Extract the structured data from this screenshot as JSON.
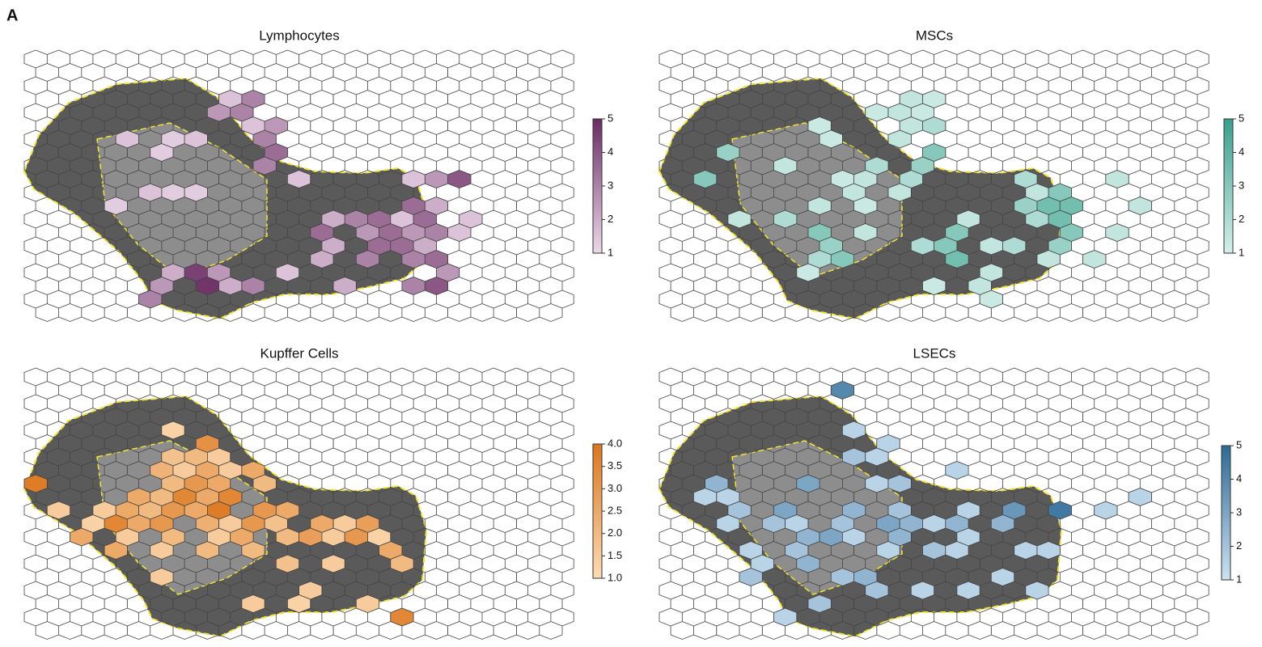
{
  "panel_label": "A",
  "chart_data": [
    {
      "type": "hexmap",
      "title": "Lymphocytes",
      "low_color": "#ecd9ea",
      "high_color": "#6a2c62",
      "clim": [
        1,
        5
      ],
      "cticks": [
        1,
        2,
        3,
        4,
        5
      ],
      "x": [
        8,
        9,
        8,
        9,
        10,
        9,
        6,
        7,
        10,
        10,
        4,
        10,
        11,
        5,
        6,
        5,
        7,
        3,
        16,
        17,
        13,
        14,
        15,
        16,
        17,
        14,
        15,
        16,
        17,
        18,
        13,
        15,
        16,
        17,
        12,
        14,
        16,
        17,
        6,
        7,
        8,
        5,
        7,
        8,
        9,
        5,
        13,
        16,
        17,
        18,
        11,
        12,
        19,
        18,
        17,
        16
      ],
      "y": [
        3,
        3,
        4,
        4,
        5,
        5,
        6,
        6,
        6,
        7,
        6,
        8,
        9,
        7,
        10,
        10,
        10,
        11,
        11,
        11,
        12,
        12,
        12,
        12,
        12,
        13,
        13,
        13,
        13,
        13,
        14,
        14,
        14,
        14,
        15,
        15,
        15,
        15,
        16,
        16,
        16,
        17,
        17,
        17,
        17,
        18,
        17,
        17,
        17,
        16,
        16,
        13,
        12,
        9,
        9,
        9
      ],
      "values": [
        1.5,
        3,
        2.5,
        3,
        2.5,
        1.5,
        1.3,
        1.5,
        3,
        3.5,
        1.5,
        3,
        1.5,
        1.3,
        1.3,
        1.5,
        1.3,
        1.3,
        3.5,
        2,
        2,
        3,
        3.5,
        1.5,
        3.5,
        2.5,
        3.5,
        2.5,
        3,
        1.5,
        2,
        3.5,
        3.5,
        2,
        2,
        3,
        3,
        3.5,
        2,
        4.5,
        2.5,
        2.5,
        4.8,
        2,
        3,
        3,
        2,
        3,
        4,
        2.5,
        1.5,
        3.5,
        1.5,
        4,
        2.5,
        1.5
      ]
    },
    {
      "type": "hexmap",
      "title": "MSCs",
      "low_color": "#d6efea",
      "high_color": "#36a08c",
      "clim": [
        1,
        5
      ],
      "cticks": [
        1,
        2,
        3,
        4,
        5
      ],
      "x": [
        10,
        11,
        9,
        10,
        11,
        6,
        10,
        11,
        7,
        10,
        2,
        11,
        1,
        5,
        9,
        10,
        11,
        7,
        8,
        15,
        19,
        16,
        17,
        8,
        10,
        6,
        8,
        15,
        16,
        17,
        20,
        3,
        5,
        13,
        16,
        17,
        6,
        8,
        12,
        17,
        19,
        7,
        11,
        12,
        14,
        15,
        17,
        6,
        7,
        12,
        16,
        18,
        6,
        13,
        14,
        11,
        14
      ],
      "y": [
        3,
        3,
        4,
        4,
        4,
        5,
        5,
        5,
        6,
        6,
        7,
        7,
        9,
        8,
        8,
        9,
        8,
        9,
        9,
        9,
        9,
        10,
        10,
        10,
        10,
        11,
        11,
        11,
        11,
        11,
        11,
        12,
        12,
        12,
        12,
        12,
        13,
        13,
        13,
        13,
        13,
        14,
        14,
        14,
        14,
        14,
        14,
        15,
        15,
        15,
        15,
        15,
        16,
        17,
        16,
        17,
        18
      ],
      "values": [
        1.5,
        1.3,
        1.3,
        1.5,
        1.3,
        1.3,
        1.5,
        2,
        1.3,
        1.5,
        2.5,
        3,
        3,
        1.5,
        2,
        2,
        2.5,
        1.3,
        1.5,
        2,
        1.5,
        1.5,
        3,
        1.5,
        1.5,
        1.5,
        1.3,
        2.5,
        3.5,
        3.5,
        1.5,
        1.5,
        2,
        1.5,
        2,
        3.5,
        3,
        1.5,
        3,
        3,
        1.5,
        2.5,
        2,
        3,
        1.5,
        2,
        2.5,
        2,
        3,
        3.5,
        1.5,
        1.5,
        1.3,
        1.5,
        1.5,
        1.3,
        1.3
      ]
    },
    {
      "type": "hexmap",
      "title": "Kupffer Cells",
      "low_color": "#fcdcb4",
      "high_color": "#dc761c",
      "clim": [
        1,
        4
      ],
      "cticks": [
        {
          "value": 1,
          "label": "1.0"
        },
        1.5,
        {
          "value": 2,
          "label": "2.0"
        },
        2.5,
        {
          "value": 3,
          "label": "3.0"
        },
        3.5,
        {
          "value": 4,
          "label": "4.0"
        }
      ],
      "x": [
        0,
        6,
        7,
        6,
        7,
        8,
        5,
        6,
        7,
        8,
        9,
        6,
        7,
        8,
        10,
        4,
        5,
        6,
        7,
        8,
        3,
        4,
        5,
        6,
        7,
        8,
        10,
        11,
        3,
        4,
        5,
        7,
        8,
        9,
        10,
        12,
        13,
        14,
        2,
        4,
        6,
        8,
        9,
        11,
        12,
        13,
        14,
        3,
        5,
        7,
        9,
        15,
        11,
        13,
        16,
        5,
        12,
        9,
        11,
        14,
        16,
        1,
        2,
        15
      ],
      "y": [
        8,
        4,
        5,
        6,
        6,
        6,
        7,
        7,
        7,
        7,
        7,
        8,
        8,
        8,
        8,
        9,
        9,
        9,
        9,
        9,
        10,
        10,
        10,
        10,
        10,
        10,
        10,
        10,
        11,
        11,
        11,
        11,
        11,
        11,
        11,
        11,
        11,
        11,
        12,
        12,
        12,
        12,
        12,
        12,
        12,
        12,
        12,
        13,
        13,
        13,
        13,
        13,
        14,
        14,
        14,
        15,
        16,
        17,
        17,
        17,
        18,
        10,
        11,
        12
      ],
      "values": [
        3.8,
        1.3,
        3.2,
        1.8,
        2,
        1.5,
        2.2,
        1.5,
        2.5,
        1.5,
        2.5,
        2,
        3,
        2.5,
        2,
        2.5,
        2,
        3.5,
        2.5,
        3.5,
        1.5,
        2.5,
        2,
        3,
        2.5,
        3.8,
        3,
        2.5,
        3.5,
        2.5,
        3,
        2.3,
        1.5,
        3,
        1.8,
        2.5,
        1.5,
        2.8,
        2.5,
        1.5,
        2,
        1.5,
        2.5,
        2,
        2.8,
        1.5,
        3,
        2.5,
        1.5,
        2,
        2,
        2.5,
        1.8,
        1.5,
        2,
        1.5,
        1.5,
        1.5,
        1.3,
        1.5,
        3.5,
        1.5,
        1.3,
        1.3
      ]
    },
    {
      "type": "hexmap",
      "title": "LSECs",
      "low_color": "#cde2f2",
      "high_color": "#2c6a96",
      "clim": [
        1,
        5
      ],
      "cticks": [
        1,
        2,
        3,
        4,
        5
      ],
      "x": [
        7,
        8,
        9,
        8,
        9,
        12,
        6,
        9,
        10,
        1,
        2,
        3,
        5,
        8,
        10,
        13,
        19,
        15,
        17,
        2,
        4,
        5,
        7,
        9,
        10,
        11,
        12,
        14,
        6,
        7,
        8,
        10,
        13,
        3,
        5,
        9,
        11,
        12,
        15,
        16,
        4,
        6,
        7,
        8,
        9,
        6,
        11,
        14,
        3,
        16,
        5,
        20,
        13,
        2
      ],
      "y": [
        1,
        4,
        5,
        6,
        6,
        7,
        8,
        8,
        8,
        9,
        9,
        10,
        10,
        10,
        10,
        10,
        10,
        10,
        10,
        11,
        11,
        11,
        11,
        11,
        11,
        11,
        11,
        11,
        12,
        12,
        12,
        12,
        12,
        13,
        13,
        13,
        13,
        13,
        13,
        13,
        14,
        14,
        15,
        15,
        16,
        17,
        16,
        15,
        15,
        16,
        18,
        9,
        16,
        8
      ],
      "values": [
        4,
        1.5,
        1.5,
        2,
        1.5,
        1.5,
        3,
        1.5,
        2,
        1.5,
        1.5,
        2,
        3,
        2.5,
        2,
        1.5,
        1.5,
        3.5,
        4.5,
        1.5,
        2,
        1.5,
        2,
        3,
        2.5,
        1.5,
        2.5,
        2.5,
        2.5,
        3,
        1.5,
        2.5,
        1.5,
        1.5,
        2,
        1.5,
        2,
        1.5,
        1.5,
        1.5,
        1.5,
        2.5,
        2,
        2.5,
        2,
        2,
        1.5,
        1.5,
        2,
        1.5,
        1.5,
        1.5,
        1.5,
        2.5
      ]
    }
  ]
}
